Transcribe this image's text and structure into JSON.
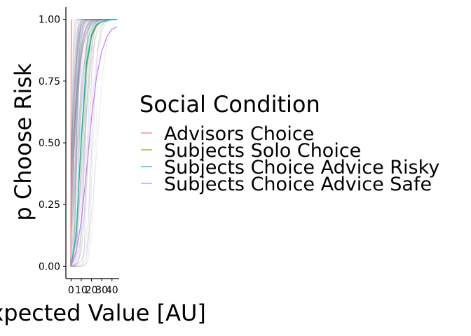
{
  "chart_data": {
    "type": "line",
    "title": "",
    "xlabel": "Expected Value [AU]",
    "ylabel": "p Choose Risk",
    "xlim": [
      -5,
      47
    ],
    "ylim": [
      -0.05,
      1.05
    ],
    "x_ticks": [
      0,
      10,
      20,
      30,
      40
    ],
    "x_tick_labels": [
      "0",
      "10",
      "20",
      "30",
      "40"
    ],
    "y_ticks": [
      0,
      0.25,
      0.5,
      0.75,
      1
    ],
    "y_tick_labels": [
      "0.00",
      "0.25",
      "0.50",
      "0.75",
      "1.00"
    ],
    "grid": false,
    "legend": {
      "title": "Social Condition",
      "placement": "right",
      "entries": [
        {
          "label": "Advisors Choice",
          "color": "#F8766D"
        },
        {
          "label": "Subjects Solo Choice",
          "color": "#7CAE00"
        },
        {
          "label": "Subjects Choice Advice Risky",
          "color": "#00BFC4"
        },
        {
          "label": "Subjects Choice Advice Safe",
          "color": "#C77CFF"
        }
      ]
    },
    "series": [
      {
        "name": "Advisors Choice",
        "color": "#F8766D",
        "x": [
          -0.5,
          -0.2,
          0,
          0.1,
          0.3,
          0.6,
          1
        ],
        "y": [
          0.0,
          0.05,
          0.5,
          0.85,
          0.97,
          0.99,
          1.0
        ]
      },
      {
        "name": "Subjects Solo Choice",
        "color": "#7CAE00",
        "x": [
          0,
          5,
          10,
          15,
          20,
          25,
          30,
          35,
          40,
          45
        ],
        "y": [
          0.0,
          0.12,
          0.5,
          0.8,
          0.93,
          0.975,
          0.99,
          0.995,
          1.0,
          1.0
        ]
      },
      {
        "name": "Subjects Choice Advice Risky",
        "color": "#00BFC4",
        "x": [
          0,
          5,
          10,
          15,
          20,
          25,
          30,
          35,
          40,
          45
        ],
        "y": [
          0.0,
          0.12,
          0.52,
          0.82,
          0.94,
          0.98,
          0.99,
          0.995,
          1.0,
          1.0
        ]
      },
      {
        "name": "Subjects Choice Advice Safe",
        "color": "#C77CFF",
        "x": [
          0,
          5,
          10,
          15,
          20,
          25,
          30,
          35,
          40,
          45
        ],
        "y": [
          0.0,
          0.06,
          0.18,
          0.38,
          0.6,
          0.77,
          0.87,
          0.93,
          0.96,
          0.97
        ]
      }
    ]
  }
}
